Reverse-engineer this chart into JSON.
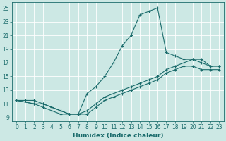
{
  "title": "",
  "xlabel": "Humidex (Indice chaleur)",
  "bg_color": "#cce8e4",
  "grid_color": "#ffffff",
  "line_color": "#1a6b6b",
  "xlim": [
    -0.5,
    23.5
  ],
  "ylim": [
    8.5,
    25.8
  ],
  "xticks": [
    0,
    1,
    2,
    3,
    4,
    5,
    6,
    7,
    8,
    9,
    10,
    11,
    12,
    13,
    14,
    15,
    16,
    17,
    18,
    19,
    20,
    21,
    22,
    23
  ],
  "yticks": [
    9,
    11,
    13,
    15,
    17,
    19,
    21,
    23,
    25
  ],
  "line1_x": [
    0,
    1,
    2,
    3,
    4,
    5,
    6,
    7,
    8,
    9,
    10,
    11,
    12,
    13,
    14,
    15,
    16,
    17,
    18,
    19,
    20,
    21,
    22,
    23
  ],
  "line1_y": [
    11.5,
    11.5,
    11.5,
    11.0,
    10.5,
    10.0,
    9.5,
    9.5,
    12.5,
    13.5,
    15.0,
    17.0,
    19.5,
    21.0,
    24.0,
    24.5,
    25.0,
    18.5,
    18.0,
    17.5,
    17.5,
    17.0,
    16.5,
    16.5
  ],
  "line2_x": [
    0,
    2,
    3,
    4,
    5,
    6,
    7,
    8,
    9,
    10,
    11,
    12,
    13,
    14,
    15,
    16,
    17,
    18,
    19,
    20,
    21,
    22,
    23
  ],
  "line2_y": [
    11.5,
    11.0,
    10.5,
    10.0,
    9.5,
    9.5,
    9.5,
    9.5,
    10.5,
    11.5,
    12.0,
    12.5,
    13.0,
    13.5,
    14.0,
    14.5,
    15.5,
    16.0,
    16.5,
    16.5,
    16.0,
    16.0,
    16.0
  ],
  "line3_x": [
    0,
    2,
    3,
    4,
    5,
    6,
    7,
    8,
    9,
    10,
    11,
    12,
    13,
    14,
    15,
    16,
    17,
    18,
    19,
    20,
    21,
    22,
    23
  ],
  "line3_y": [
    11.5,
    11.0,
    11.0,
    10.5,
    10.0,
    9.5,
    9.5,
    10.0,
    11.0,
    12.0,
    12.5,
    13.0,
    13.5,
    14.0,
    14.5,
    15.0,
    16.0,
    16.5,
    17.0,
    17.5,
    17.5,
    16.5,
    16.5
  ]
}
